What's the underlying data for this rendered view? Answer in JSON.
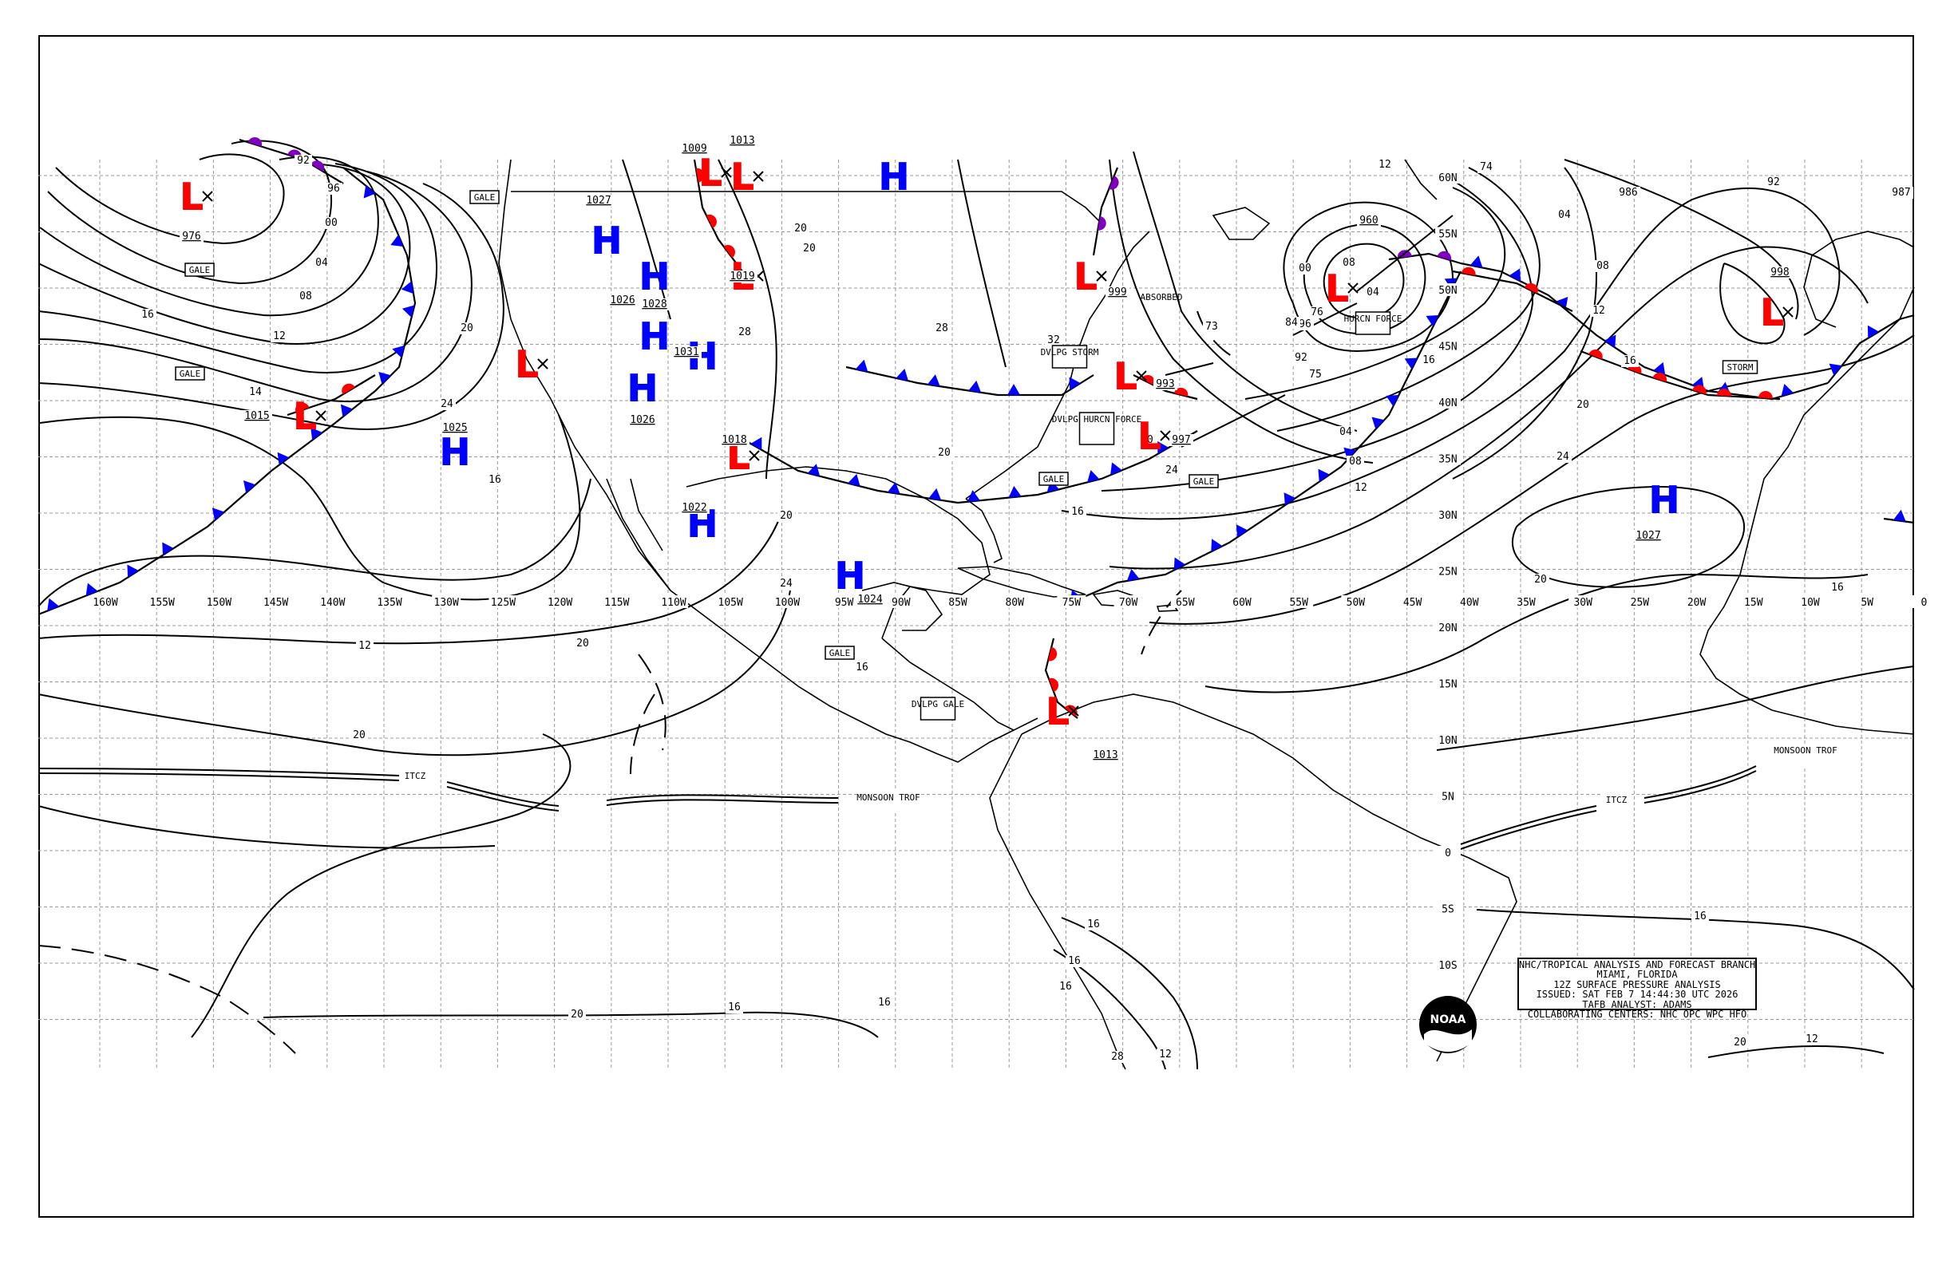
{
  "product": {
    "line1": "NHC/TROPICAL ANALYSIS AND FORECAST BRANCH",
    "line2": "MIAMI, FLORIDA",
    "line3": "12Z SURFACE PRESSURE ANALYSIS",
    "line4": "ISSUED: SAT FEB 7 14:44:30 UTC 2026",
    "line5": "TAFB ANALYST: ADAMS",
    "line6": "COLLABORATING CENTERS: NHC OPC WPC HFO"
  },
  "logo": {
    "text": "NOAA",
    "icon": "noaa-logo-icon"
  },
  "colors": {
    "low": "#ff0000",
    "high": "#0000ff",
    "warm_front": "#ff0000",
    "cold_front": "#0000ff",
    "occluded_front": "#8000c0",
    "isobar": "#000000"
  },
  "longitude_labels": [
    "160W",
    "155W",
    "150W",
    "145W",
    "140W",
    "135W",
    "130W",
    "125W",
    "120W",
    "115W",
    "110W",
    "105W",
    "100W",
    "95W",
    "90W",
    "85W",
    "80W",
    "75W",
    "70W",
    "65W",
    "60W",
    "55W",
    "50W",
    "45W",
    "40W",
    "35W",
    "30W",
    "25W",
    "20W",
    "15W",
    "10W",
    "5W",
    "0"
  ],
  "latitude_labels": [
    "60N",
    "55N",
    "50N",
    "45N",
    "40N",
    "35N",
    "30N",
    "25N",
    "20N",
    "15N",
    "10N",
    "5N",
    "0",
    "5S",
    "10S"
  ],
  "pressure_centers": [
    {
      "type": "L",
      "value": "976"
    },
    {
      "type": "L",
      "value": "1015"
    },
    {
      "type": "L",
      "value": ""
    },
    {
      "type": "H",
      "value": "1025"
    },
    {
      "type": "H",
      "value": "1027"
    },
    {
      "type": "H",
      "value": "1026"
    },
    {
      "type": "H",
      "value": "1028"
    },
    {
      "type": "H",
      "value": "1026"
    },
    {
      "type": "H",
      "value": "1031"
    },
    {
      "type": "H",
      "value": "1022"
    },
    {
      "type": "L",
      "value": "1013"
    },
    {
      "type": "L",
      "value": "1019"
    },
    {
      "type": "L",
      "value": "1018"
    },
    {
      "type": "H",
      "value": "1024"
    },
    {
      "type": "H",
      "value": ""
    },
    {
      "type": "L",
      "value": "1009"
    },
    {
      "type": "L",
      "value": "999"
    },
    {
      "type": "L",
      "value": "993"
    },
    {
      "type": "L",
      "value": "997"
    },
    {
      "type": "L",
      "value": "960"
    },
    {
      "type": "L",
      "value": "998"
    },
    {
      "type": "H",
      "value": "1027"
    },
    {
      "type": "L",
      "value": "1013"
    }
  ],
  "text_labels": [
    {
      "name": "gale-label",
      "text": "GALE"
    },
    {
      "name": "gale-label",
      "text": "GALE"
    },
    {
      "name": "gale-label",
      "text": "GALE"
    },
    {
      "name": "gale-label",
      "text": "GALE"
    },
    {
      "name": "gale-label",
      "text": "GALE"
    },
    {
      "name": "gale-label",
      "text": "GALE"
    },
    {
      "name": "storm-label",
      "text": "STORM"
    },
    {
      "name": "hurricane-force-label",
      "text": "HURCN FORCE"
    },
    {
      "name": "developing-hurricane-force-label",
      "text": "DVLPG HURCN FORCE"
    },
    {
      "name": "developing-storm-label",
      "text": "DVLPG STORM"
    },
    {
      "name": "developing-gale-label",
      "text": "DVLPG GALE"
    },
    {
      "name": "absorbed-label",
      "text": "ABSORBED"
    }
  ],
  "isobar_labels": [
    "92",
    "96",
    "00",
    "04",
    "08",
    "12",
    "14",
    "16",
    "20",
    "24",
    "16",
    "12",
    "20",
    "24",
    "16",
    "20",
    "12",
    "16",
    "04",
    "08",
    "00",
    "96",
    "92",
    "84",
    "76",
    "75",
    "74",
    "73",
    "04",
    "08",
    "12",
    "16",
    "20",
    "24",
    "986",
    "987",
    "92",
    "04",
    "08",
    "12",
    "16",
    "20",
    "24",
    "20",
    "16",
    "16",
    "16",
    "16",
    "20",
    "20",
    "12",
    "16",
    "16",
    "16",
    "12",
    "28",
    "28",
    "32",
    "20",
    "20",
    "20",
    "20",
    "28"
  ],
  "features": [
    {
      "name": "itcz-label",
      "text": "ITCZ"
    },
    {
      "name": "itcz-label",
      "text": "ITCZ"
    },
    {
      "name": "monsoon-trough-label",
      "text": "MONSOON TROF"
    },
    {
      "name": "monsoon-trough-label",
      "text": "MONSOON TROF"
    }
  ]
}
